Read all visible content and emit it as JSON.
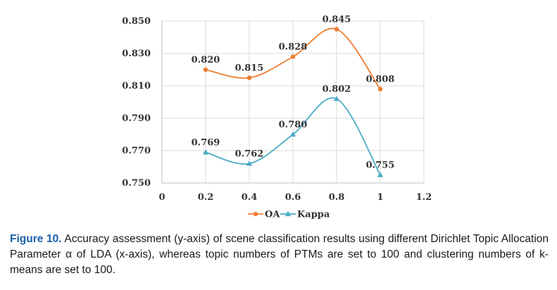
{
  "chart_data": {
    "type": "line",
    "x": [
      0.2,
      0.4,
      0.6,
      0.8,
      1
    ],
    "series": [
      {
        "name": "OA",
        "values": [
          0.82,
          0.815,
          0.828,
          0.845,
          0.808
        ],
        "labels": [
          "0.820",
          "0.815",
          "0.828",
          "0.845",
          "0.808"
        ],
        "color": "#ED7D31",
        "marker": "circle"
      },
      {
        "name": "Kappa",
        "values": [
          0.769,
          0.762,
          0.78,
          0.802,
          0.755
        ],
        "labels": [
          "0.769",
          "0.762",
          "0.780",
          "0.802",
          "0.755"
        ],
        "color": "#4BACC6",
        "marker": "triangle"
      }
    ],
    "xlim": [
      0,
      1.2
    ],
    "ylim": [
      0.75,
      0.85
    ],
    "xticks": [
      0,
      0.2,
      0.4,
      0.6,
      0.8,
      1,
      1.2
    ],
    "xtick_labels": [
      "0",
      "0.2",
      "0.4",
      "0.6",
      "0.8",
      "1",
      "1.2"
    ],
    "yticks": [
      0.75,
      0.77,
      0.79,
      0.81,
      0.83,
      0.85
    ],
    "ytick_labels": [
      "0.750",
      "0.770",
      "0.790",
      "0.810",
      "0.830",
      "0.850"
    ],
    "grid": true,
    "legend": "bottom",
    "smooth": true
  },
  "caption": {
    "label": "Figure 10.",
    "text": " Accuracy assessment (y-axis) of scene classification results using different Dirichlet Topic Allocation Parameter α of LDA (x-axis), whereas topic numbers of PTMs are set to 100 and clustering numbers of k-means are set to 100."
  }
}
